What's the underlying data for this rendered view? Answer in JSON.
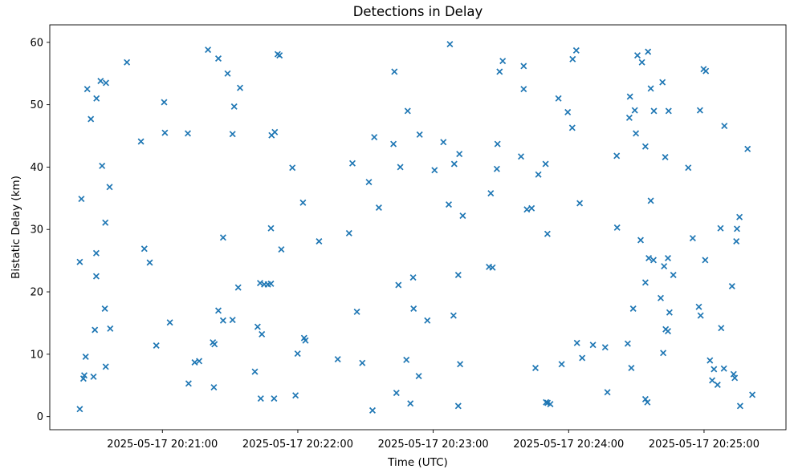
{
  "figure": {
    "background_color": "#ffffff",
    "marker_color": "#1f77b4",
    "marker_style": "x"
  },
  "chart_data": {
    "type": "scatter",
    "title": "Detections in Delay",
    "xlabel": "Time (UTC)",
    "ylabel": "Bistatic Delay (km)",
    "grid": false,
    "legend": null,
    "x_unit": "seconds after 2025-05-17 20:20:00 UTC",
    "x_ticks_seconds": [
      60,
      120,
      180,
      240,
      300
    ],
    "x_tick_labels": [
      "2025-05-17 20:21:00",
      "2025-05-17 20:22:00",
      "2025-05-17 20:23:00",
      "2025-05-17 20:24:00",
      "2025-05-17 20:25:00"
    ],
    "y_ticks": [
      0,
      10,
      20,
      30,
      40,
      50,
      60
    ],
    "xlim_seconds": [
      10.1,
      336.3
    ],
    "ylim": [
      -2.1,
      62.8
    ],
    "points": [
      [
        80.2,
        58.8
      ],
      [
        84.8,
        57.4
      ],
      [
        44.3,
        56.8
      ],
      [
        88.9,
        55.0
      ],
      [
        32.6,
        53.8
      ],
      [
        35.0,
        53.5
      ],
      [
        26.7,
        52.5
      ],
      [
        30.8,
        51.0
      ],
      [
        60.8,
        50.4
      ],
      [
        91.8,
        49.7
      ],
      [
        28.3,
        47.7
      ],
      [
        61.1,
        45.5
      ],
      [
        71.3,
        45.4
      ],
      [
        91.1,
        45.3
      ],
      [
        50.5,
        44.1
      ],
      [
        33.3,
        40.2
      ],
      [
        36.6,
        36.8
      ],
      [
        24.1,
        34.9
      ],
      [
        34.7,
        31.1
      ],
      [
        86.9,
        28.7
      ],
      [
        52.0,
        26.9
      ],
      [
        30.7,
        26.2
      ],
      [
        23.4,
        24.8
      ],
      [
        54.4,
        24.7
      ],
      [
        30.7,
        22.5
      ],
      [
        34.5,
        17.3
      ],
      [
        84.8,
        17.0
      ],
      [
        86.9,
        15.4
      ],
      [
        91.1,
        15.5
      ],
      [
        63.3,
        15.1
      ],
      [
        30.1,
        13.9
      ],
      [
        36.9,
        14.1
      ],
      [
        57.3,
        11.4
      ],
      [
        82.4,
        11.9
      ],
      [
        83.1,
        11.6
      ],
      [
        26.0,
        9.6
      ],
      [
        74.3,
        8.7
      ],
      [
        76.3,
        8.9
      ],
      [
        34.9,
        8.0
      ],
      [
        25.4,
        6.6
      ],
      [
        25.0,
        6.1
      ],
      [
        29.5,
        6.4
      ],
      [
        71.6,
        5.3
      ],
      [
        82.8,
        4.7
      ],
      [
        23.4,
        1.2
      ],
      [
        111.1,
        58.1
      ],
      [
        111.9,
        57.9
      ],
      [
        162.8,
        55.3
      ],
      [
        94.4,
        52.7
      ],
      [
        168.7,
        49.0
      ],
      [
        108.4,
        45.1
      ],
      [
        109.8,
        45.6
      ],
      [
        153.9,
        44.8
      ],
      [
        162.4,
        43.7
      ],
      [
        117.6,
        39.9
      ],
      [
        144.2,
        40.6
      ],
      [
        165.4,
        40.0
      ],
      [
        151.5,
        37.6
      ],
      [
        122.3,
        34.3
      ],
      [
        155.9,
        33.5
      ],
      [
        142.7,
        29.4
      ],
      [
        129.4,
        28.1
      ],
      [
        112.7,
        26.8
      ],
      [
        108.1,
        30.2
      ],
      [
        103.3,
        21.4
      ],
      [
        105.1,
        21.2
      ],
      [
        106.7,
        21.2
      ],
      [
        108.1,
        21.3
      ],
      [
        93.6,
        20.7
      ],
      [
        164.6,
        21.1
      ],
      [
        171.1,
        22.3
      ],
      [
        146.2,
        16.8
      ],
      [
        171.3,
        17.3
      ],
      [
        102.2,
        14.4
      ],
      [
        104.1,
        13.2
      ],
      [
        122.8,
        12.6
      ],
      [
        123.4,
        12.2
      ],
      [
        119.9,
        10.1
      ],
      [
        137.7,
        9.2
      ],
      [
        148.6,
        8.6
      ],
      [
        168.1,
        9.1
      ],
      [
        101.0,
        7.2
      ],
      [
        103.6,
        2.9
      ],
      [
        109.5,
        2.9
      ],
      [
        119.0,
        3.4
      ],
      [
        163.7,
        3.8
      ],
      [
        153.1,
        1.0
      ],
      [
        169.9,
        2.1
      ],
      [
        187.4,
        59.7
      ],
      [
        243.4,
        58.7
      ],
      [
        241.8,
        57.3
      ],
      [
        210.8,
        57.0
      ],
      [
        209.4,
        55.3
      ],
      [
        220.1,
        56.2
      ],
      [
        220.1,
        52.5
      ],
      [
        235.5,
        51.0
      ],
      [
        239.6,
        48.8
      ],
      [
        241.6,
        46.3
      ],
      [
        174.0,
        45.2
      ],
      [
        184.5,
        44.0
      ],
      [
        208.5,
        43.7
      ],
      [
        191.6,
        42.1
      ],
      [
        218.9,
        41.7
      ],
      [
        189.3,
        40.5
      ],
      [
        229.8,
        40.5
      ],
      [
        226.6,
        38.8
      ],
      [
        180.6,
        39.5
      ],
      [
        208.2,
        39.7
      ],
      [
        205.5,
        35.8
      ],
      [
        186.9,
        34.0
      ],
      [
        193.1,
        32.2
      ],
      [
        221.5,
        33.2
      ],
      [
        223.6,
        33.4
      ],
      [
        244.9,
        34.2
      ],
      [
        230.6,
        29.3
      ],
      [
        204.7,
        24.0
      ],
      [
        206.3,
        23.9
      ],
      [
        191.1,
        22.7
      ],
      [
        177.4,
        15.4
      ],
      [
        189.0,
        16.2
      ],
      [
        191.9,
        8.4
      ],
      [
        173.6,
        6.5
      ],
      [
        225.3,
        7.8
      ],
      [
        236.9,
        8.4
      ],
      [
        243.7,
        11.8
      ],
      [
        250.8,
        11.5
      ],
      [
        246.0,
        9.4
      ],
      [
        191.1,
        1.7
      ],
      [
        230.0,
        2.3
      ],
      [
        230.7,
        2.2
      ],
      [
        231.9,
        2.0
      ],
      [
        270.5,
        57.9
      ],
      [
        275.2,
        58.5
      ],
      [
        272.5,
        56.8
      ],
      [
        299.8,
        55.7
      ],
      [
        300.8,
        55.4
      ],
      [
        281.6,
        53.6
      ],
      [
        276.4,
        52.6
      ],
      [
        267.2,
        51.3
      ],
      [
        269.3,
        49.1
      ],
      [
        266.9,
        47.9
      ],
      [
        277.8,
        49.0
      ],
      [
        284.3,
        49.0
      ],
      [
        298.2,
        49.1
      ],
      [
        309.0,
        46.6
      ],
      [
        269.8,
        45.4
      ],
      [
        274.0,
        43.3
      ],
      [
        319.3,
        42.9
      ],
      [
        261.3,
        41.8
      ],
      [
        282.8,
        41.6
      ],
      [
        293.0,
        39.9
      ],
      [
        276.4,
        34.6
      ],
      [
        315.7,
        32.0
      ],
      [
        261.5,
        30.3
      ],
      [
        307.3,
        30.2
      ],
      [
        314.6,
        30.1
      ],
      [
        314.3,
        28.1
      ],
      [
        271.9,
        28.3
      ],
      [
        295.0,
        28.6
      ],
      [
        275.5,
        25.4
      ],
      [
        277.6,
        25.1
      ],
      [
        284.0,
        25.4
      ],
      [
        300.5,
        25.1
      ],
      [
        282.3,
        24.1
      ],
      [
        286.4,
        22.7
      ],
      [
        274.0,
        21.5
      ],
      [
        312.4,
        20.9
      ],
      [
        280.8,
        19.0
      ],
      [
        268.6,
        17.3
      ],
      [
        284.7,
        16.7
      ],
      [
        297.7,
        17.6
      ],
      [
        298.5,
        16.2
      ],
      [
        307.6,
        14.2
      ],
      [
        283.0,
        14.0
      ],
      [
        284.0,
        13.7
      ],
      [
        266.2,
        11.7
      ],
      [
        256.2,
        11.1
      ],
      [
        281.9,
        10.2
      ],
      [
        267.8,
        7.8
      ],
      [
        302.6,
        9.0
      ],
      [
        304.4,
        7.6
      ],
      [
        308.8,
        7.7
      ],
      [
        313.1,
        6.8
      ],
      [
        313.6,
        6.2
      ],
      [
        303.6,
        5.8
      ],
      [
        306.0,
        5.1
      ],
      [
        321.4,
        3.5
      ],
      [
        257.2,
        3.9
      ],
      [
        274.0,
        2.8
      ],
      [
        274.9,
        2.3
      ],
      [
        316.0,
        1.7
      ]
    ]
  }
}
